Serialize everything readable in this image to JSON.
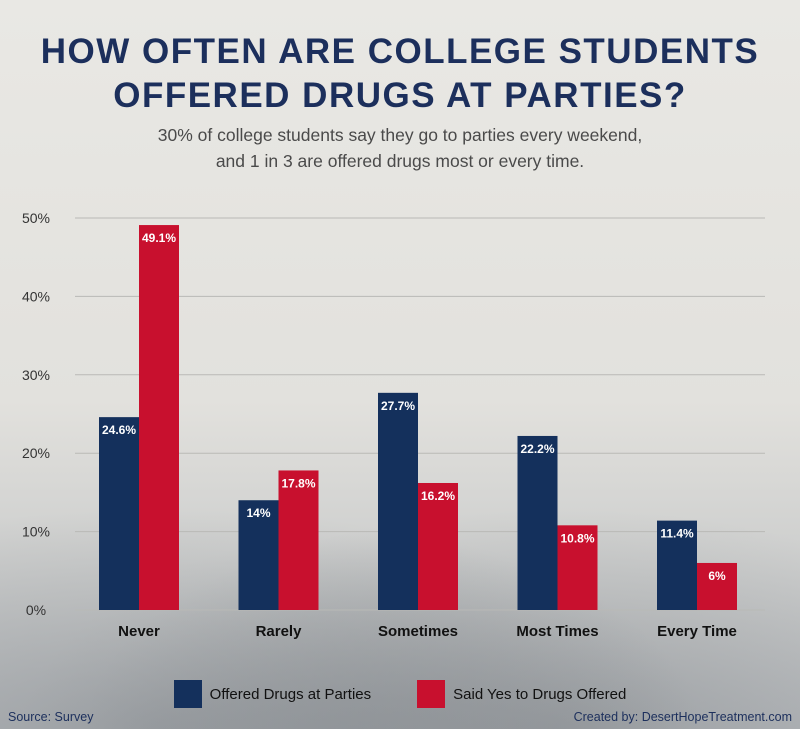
{
  "title_line1": "HOW OFTEN ARE COLLEGE STUDENTS",
  "title_line2": "OFFERED DRUGS AT PARTIES?",
  "subtitle_line1": "30% of college students say they go to parties every weekend,",
  "subtitle_line2": "and 1 in 3 are offered drugs most or every time.",
  "source": "Source: Survey",
  "credit": "Created by: DesertHopeTreatment.com",
  "colors": {
    "offered": "#14305c",
    "said_yes": "#c8102e",
    "grid": "#b9b9b6",
    "axis_text": "#333333"
  },
  "chart_data": {
    "type": "bar",
    "categories": [
      "Never",
      "Rarely",
      "Sometimes",
      "Most Times",
      "Every Time"
    ],
    "series": [
      {
        "name": "Offered Drugs at Parties",
        "values": [
          24.6,
          14,
          27.7,
          22.2,
          11.4
        ],
        "labels": [
          "24.6%",
          "14%",
          "27.7%",
          "22.2%",
          "11.4%"
        ]
      },
      {
        "name": "Said Yes to Drugs Offered",
        "values": [
          49.1,
          17.8,
          16.2,
          10.8,
          6
        ],
        "labels": [
          "49.1%",
          "17.8%",
          "16.2%",
          "10.8%",
          "6%"
        ]
      }
    ],
    "yticks": [
      0,
      10,
      20,
      30,
      40,
      50
    ],
    "ytick_labels": [
      "0%",
      "10%",
      "20%",
      "30%",
      "40%",
      "50%"
    ],
    "ylim": [
      0,
      50
    ],
    "grid": true,
    "legend_position": "bottom-center"
  }
}
